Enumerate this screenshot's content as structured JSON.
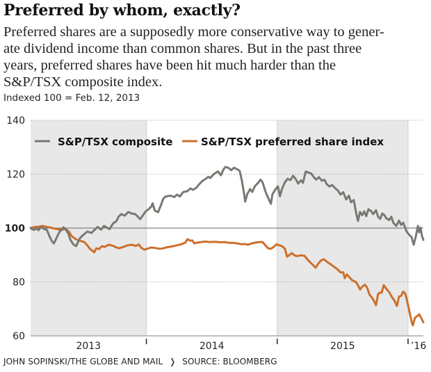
{
  "header": {
    "title": "Preferred by whom, exactly?",
    "dek_lines": [
      "Preferred shares are a supposedly more conservative way to gener-",
      "ate dividend income than common shares. But in the past three",
      "years, preferred shares have been hit much harder than the",
      "S&P/TSX composite index."
    ],
    "subtitle": "Indexed 100 = Feb. 12, 2013"
  },
  "footer": {
    "credit": "JOHN SOPINSKI/THE GLOBE AND MAIL",
    "separator": "❭",
    "source": "SOURCE: BLOOMBERG"
  },
  "chart_data": {
    "type": "line",
    "title": "Preferred by whom, exactly?",
    "subtitle": "Indexed 100 = Feb. 12, 2013",
    "xlabel": "",
    "ylabel": "",
    "xlim": [
      2013.115,
      2016.117
    ],
    "ylim": [
      60,
      140
    ],
    "yticks": [
      60,
      80,
      100,
      120,
      140
    ],
    "ytick_bold": 100,
    "baseline": 100,
    "grid": true,
    "year_bands": [
      {
        "label": "2013",
        "start": 2013.115,
        "end": 2014.0,
        "shaded": true
      },
      {
        "label": "2014",
        "start": 2014.0,
        "end": 2015.0,
        "shaded": false
      },
      {
        "label": "2015",
        "start": 2015.0,
        "end": 2016.0,
        "shaded": true
      },
      {
        "label": "’16",
        "start": 2016.0,
        "end": 2016.117,
        "shaded": false
      }
    ],
    "legend_position": "top",
    "series": [
      {
        "name": "S&P/TSX composite",
        "color": "#7a7872",
        "points": [
          [
            2013.115,
            100.0
          ],
          [
            2013.138,
            99.3
          ],
          [
            2013.16,
            99.8
          ],
          [
            2013.176,
            99.2
          ],
          [
            2013.197,
            100.5
          ],
          [
            2013.218,
            99.6
          ],
          [
            2013.24,
            99.3
          ],
          [
            2013.26,
            96.9
          ],
          [
            2013.277,
            95.2
          ],
          [
            2013.293,
            94.3
          ],
          [
            2013.314,
            96.4
          ],
          [
            2013.335,
            98.5
          ],
          [
            2013.356,
            99.6
          ],
          [
            2013.367,
            100.3
          ],
          [
            2013.383,
            99.5
          ],
          [
            2013.404,
            97.9
          ],
          [
            2013.42,
            95.6
          ],
          [
            2013.441,
            94.0
          ],
          [
            2013.463,
            93.3
          ],
          [
            2013.484,
            95.4
          ],
          [
            2013.495,
            96.4
          ],
          [
            2013.516,
            97.4
          ],
          [
            2013.548,
            98.7
          ],
          [
            2013.58,
            98.2
          ],
          [
            2013.601,
            99.2
          ],
          [
            2013.628,
            100.4
          ],
          [
            2013.654,
            99.4
          ],
          [
            2013.676,
            100.8
          ],
          [
            2013.697,
            100.2
          ],
          [
            2013.718,
            99.6
          ],
          [
            2013.745,
            101.7
          ],
          [
            2013.771,
            102.6
          ],
          [
            2013.787,
            104.2
          ],
          [
            2013.809,
            105.2
          ],
          [
            2013.835,
            104.6
          ],
          [
            2013.862,
            106.0
          ],
          [
            2013.888,
            105.4
          ],
          [
            2013.915,
            105.2
          ],
          [
            2013.931,
            104.4
          ],
          [
            2013.952,
            103.3
          ],
          [
            2013.973,
            104.7
          ],
          [
            2013.995,
            106.2
          ],
          [
            2014.016,
            107.0
          ],
          [
            2014.037,
            107.9
          ],
          [
            2014.048,
            109.2
          ],
          [
            2014.064,
            106.5
          ],
          [
            2014.09,
            105.9
          ],
          [
            2014.112,
            108.6
          ],
          [
            2014.128,
            110.8
          ],
          [
            2014.144,
            111.6
          ],
          [
            2014.165,
            111.9
          ],
          [
            2014.186,
            112.0
          ],
          [
            2014.213,
            111.5
          ],
          [
            2014.234,
            112.4
          ],
          [
            2014.255,
            111.7
          ],
          [
            2014.282,
            113.4
          ],
          [
            2014.314,
            113.7
          ],
          [
            2014.335,
            114.7
          ],
          [
            2014.356,
            114.2
          ],
          [
            2014.383,
            115.0
          ],
          [
            2014.404,
            116.3
          ],
          [
            2014.431,
            117.6
          ],
          [
            2014.452,
            118.2
          ],
          [
            2014.473,
            119.0
          ],
          [
            2014.489,
            118.6
          ],
          [
            2014.511,
            119.8
          ],
          [
            2014.527,
            120.4
          ],
          [
            2014.548,
            121.0
          ],
          [
            2014.569,
            119.6
          ],
          [
            2014.59,
            121.8
          ],
          [
            2014.606,
            122.7
          ],
          [
            2014.628,
            122.3
          ],
          [
            2014.649,
            121.5
          ],
          [
            2014.67,
            122.4
          ],
          [
            2014.691,
            121.9
          ],
          [
            2014.713,
            121.2
          ],
          [
            2014.729,
            117.8
          ],
          [
            2014.745,
            113.2
          ],
          [
            2014.755,
            109.8
          ],
          [
            2014.771,
            112.6
          ],
          [
            2014.793,
            114.5
          ],
          [
            2014.809,
            113.4
          ],
          [
            2014.83,
            115.6
          ],
          [
            2014.856,
            116.9
          ],
          [
            2014.872,
            118.0
          ],
          [
            2014.888,
            117.0
          ],
          [
            2014.91,
            113.6
          ],
          [
            2014.931,
            111.2
          ],
          [
            2014.952,
            109.0
          ],
          [
            2014.963,
            112.4
          ],
          [
            2014.979,
            113.8
          ],
          [
            2015.005,
            115.5
          ],
          [
            2015.021,
            111.8
          ],
          [
            2015.037,
            114.6
          ],
          [
            2015.059,
            117.0
          ],
          [
            2015.08,
            118.3
          ],
          [
            2015.101,
            117.8
          ],
          [
            2015.122,
            119.4
          ],
          [
            2015.144,
            118.0
          ],
          [
            2015.16,
            116.5
          ],
          [
            2015.181,
            117.7
          ],
          [
            2015.197,
            116.8
          ],
          [
            2015.218,
            121.0
          ],
          [
            2015.239,
            120.6
          ],
          [
            2015.261,
            120.2
          ],
          [
            2015.282,
            118.8
          ],
          [
            2015.298,
            118.0
          ],
          [
            2015.319,
            118.9
          ],
          [
            2015.34,
            117.6
          ],
          [
            2015.362,
            117.9
          ],
          [
            2015.378,
            116.3
          ],
          [
            2015.399,
            115.4
          ],
          [
            2015.42,
            116.0
          ],
          [
            2015.447,
            114.6
          ],
          [
            2015.463,
            114.0
          ],
          [
            2015.484,
            112.4
          ],
          [
            2015.505,
            113.3
          ],
          [
            2015.527,
            110.6
          ],
          [
            2015.548,
            112.0
          ],
          [
            2015.564,
            109.6
          ],
          [
            2015.585,
            110.4
          ],
          [
            2015.601,
            106.2
          ],
          [
            2015.617,
            102.6
          ],
          [
            2015.633,
            106.0
          ],
          [
            2015.649,
            104.8
          ],
          [
            2015.665,
            106.2
          ],
          [
            2015.681,
            104.4
          ],
          [
            2015.697,
            107.0
          ],
          [
            2015.718,
            106.3
          ],
          [
            2015.734,
            105.2
          ],
          [
            2015.755,
            106.6
          ],
          [
            2015.771,
            104.2
          ],
          [
            2015.787,
            103.4
          ],
          [
            2015.803,
            105.4
          ],
          [
            2015.819,
            104.8
          ],
          [
            2015.835,
            103.6
          ],
          [
            2015.856,
            103.0
          ],
          [
            2015.872,
            104.2
          ],
          [
            2015.888,
            101.9
          ],
          [
            2015.91,
            100.8
          ],
          [
            2015.931,
            102.8
          ],
          [
            2015.947,
            101.2
          ],
          [
            2015.963,
            102.0
          ],
          [
            2015.989,
            98.7
          ],
          [
            2016.011,
            97.4
          ],
          [
            2016.027,
            96.6
          ],
          [
            2016.043,
            93.8
          ],
          [
            2016.059,
            96.8
          ],
          [
            2016.075,
            100.8
          ],
          [
            2016.085,
            98.4
          ],
          [
            2016.096,
            100.2
          ],
          [
            2016.106,
            97.2
          ],
          [
            2016.117,
            95.6
          ]
        ]
      },
      {
        "name": "S&P/TSX preferred share index",
        "color": "#cc6f2c",
        "points": [
          [
            2013.115,
            100.0
          ],
          [
            2013.144,
            100.4
          ],
          [
            2013.176,
            100.5
          ],
          [
            2013.208,
            100.8
          ],
          [
            2013.24,
            100.4
          ],
          [
            2013.266,
            100.2
          ],
          [
            2013.298,
            99.8
          ],
          [
            2013.33,
            99.5
          ],
          [
            2013.356,
            99.4
          ],
          [
            2013.383,
            99.7
          ],
          [
            2013.409,
            98.6
          ],
          [
            2013.431,
            96.9
          ],
          [
            2013.452,
            96.2
          ],
          [
            2013.473,
            95.6
          ],
          [
            2013.505,
            95.1
          ],
          [
            2013.527,
            94.8
          ],
          [
            2013.548,
            93.6
          ],
          [
            2013.569,
            92.3
          ],
          [
            2013.59,
            91.5
          ],
          [
            2013.601,
            91.0
          ],
          [
            2013.617,
            92.5
          ],
          [
            2013.638,
            92.2
          ],
          [
            2013.66,
            93.3
          ],
          [
            2013.681,
            93.0
          ],
          [
            2013.713,
            93.8
          ],
          [
            2013.745,
            93.4
          ],
          [
            2013.771,
            92.8
          ],
          [
            2013.793,
            92.5
          ],
          [
            2013.825,
            93.0
          ],
          [
            2013.856,
            93.6
          ],
          [
            2013.888,
            93.8
          ],
          [
            2013.92,
            93.4
          ],
          [
            2013.941,
            93.9
          ],
          [
            2013.963,
            92.6
          ],
          [
            2013.984,
            92.0
          ],
          [
            2014.005,
            92.3
          ],
          [
            2014.037,
            92.8
          ],
          [
            2014.069,
            92.6
          ],
          [
            2014.101,
            92.3
          ],
          [
            2014.128,
            92.5
          ],
          [
            2014.16,
            92.9
          ],
          [
            2014.197,
            93.2
          ],
          [
            2014.234,
            93.6
          ],
          [
            2014.266,
            94.0
          ],
          [
            2014.298,
            94.6
          ],
          [
            2014.314,
            95.9
          ],
          [
            2014.335,
            95.3
          ],
          [
            2014.351,
            95.4
          ],
          [
            2014.367,
            94.3
          ],
          [
            2014.388,
            94.6
          ],
          [
            2014.42,
            94.8
          ],
          [
            2014.452,
            95.0
          ],
          [
            2014.484,
            94.8
          ],
          [
            2014.527,
            94.9
          ],
          [
            2014.569,
            94.7
          ],
          [
            2014.601,
            94.8
          ],
          [
            2014.633,
            94.5
          ],
          [
            2014.665,
            94.5
          ],
          [
            2014.697,
            94.3
          ],
          [
            2014.729,
            94.0
          ],
          [
            2014.75,
            94.1
          ],
          [
            2014.777,
            93.8
          ],
          [
            2014.803,
            94.3
          ],
          [
            2014.835,
            94.6
          ],
          [
            2014.867,
            94.8
          ],
          [
            2014.888,
            94.8
          ],
          [
            2014.91,
            93.6
          ],
          [
            2014.931,
            92.5
          ],
          [
            2014.952,
            92.3
          ],
          [
            2014.973,
            93.0
          ],
          [
            2014.995,
            94.0
          ],
          [
            2015.016,
            93.6
          ],
          [
            2015.037,
            93.3
          ],
          [
            2015.059,
            92.3
          ],
          [
            2015.075,
            89.4
          ],
          [
            2015.096,
            90.1
          ],
          [
            2015.112,
            90.7
          ],
          [
            2015.133,
            89.8
          ],
          [
            2015.154,
            89.6
          ],
          [
            2015.181,
            89.9
          ],
          [
            2015.208,
            89.7
          ],
          [
            2015.229,
            88.5
          ],
          [
            2015.25,
            87.4
          ],
          [
            2015.271,
            86.4
          ],
          [
            2015.293,
            85.3
          ],
          [
            2015.314,
            86.8
          ],
          [
            2015.335,
            88.0
          ],
          [
            2015.356,
            88.4
          ],
          [
            2015.378,
            87.6
          ],
          [
            2015.404,
            86.7
          ],
          [
            2015.436,
            85.6
          ],
          [
            2015.463,
            84.6
          ],
          [
            2015.484,
            83.5
          ],
          [
            2015.505,
            83.6
          ],
          [
            2015.516,
            81.4
          ],
          [
            2015.532,
            82.8
          ],
          [
            2015.548,
            82.0
          ],
          [
            2015.574,
            80.6
          ],
          [
            2015.601,
            80.0
          ],
          [
            2015.617,
            78.8
          ],
          [
            2015.633,
            77.2
          ],
          [
            2015.649,
            78.2
          ],
          [
            2015.67,
            79.0
          ],
          [
            2015.686,
            78.0
          ],
          [
            2015.707,
            75.2
          ],
          [
            2015.723,
            74.3
          ],
          [
            2015.739,
            73.0
          ],
          [
            2015.755,
            71.4
          ],
          [
            2015.771,
            75.6
          ],
          [
            2015.787,
            76.1
          ],
          [
            2015.798,
            76.0
          ],
          [
            2015.814,
            78.8
          ],
          [
            2015.835,
            77.4
          ],
          [
            2015.856,
            76.2
          ],
          [
            2015.878,
            74.3
          ],
          [
            2015.894,
            73.2
          ],
          [
            2015.915,
            71.1
          ],
          [
            2015.931,
            74.6
          ],
          [
            2015.947,
            74.8
          ],
          [
            2015.963,
            76.4
          ],
          [
            2015.979,
            75.7
          ],
          [
            2015.995,
            72.6
          ],
          [
            2016.011,
            69.0
          ],
          [
            2016.027,
            65.2
          ],
          [
            2016.037,
            63.9
          ],
          [
            2016.053,
            66.8
          ],
          [
            2016.069,
            67.2
          ],
          [
            2016.085,
            68.0
          ],
          [
            2016.101,
            66.6
          ],
          [
            2016.117,
            65.0
          ]
        ]
      }
    ]
  }
}
